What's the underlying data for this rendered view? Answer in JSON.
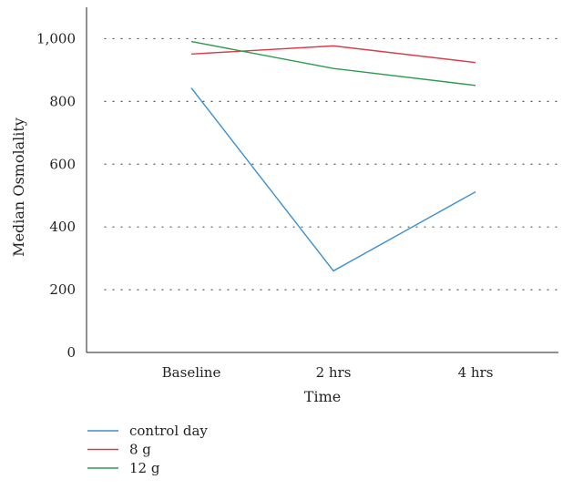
{
  "chart_data": {
    "type": "line",
    "title": "",
    "xlabel": "Time",
    "ylabel": "Median Osmolality",
    "categories": [
      "Baseline",
      "2 hrs",
      "4 hrs"
    ],
    "ylim": [
      0,
      1100
    ],
    "yticks": [
      0,
      200,
      400,
      600,
      800,
      1000
    ],
    "ytick_labels": [
      "0",
      "200",
      "400",
      "600",
      "800",
      "1,000"
    ],
    "grid": "horizontal dotted",
    "legend_position": "bottom-left",
    "series": [
      {
        "name": "control day",
        "color": "#3a8fd0",
        "values": [
          843,
          260,
          512
        ]
      },
      {
        "name": "8 g",
        "color": "#dc3b4b",
        "values": [
          951,
          977,
          924
        ]
      },
      {
        "name": "12 g",
        "color": "#2e9a4e",
        "values": [
          991,
          905,
          851
        ]
      }
    ]
  }
}
